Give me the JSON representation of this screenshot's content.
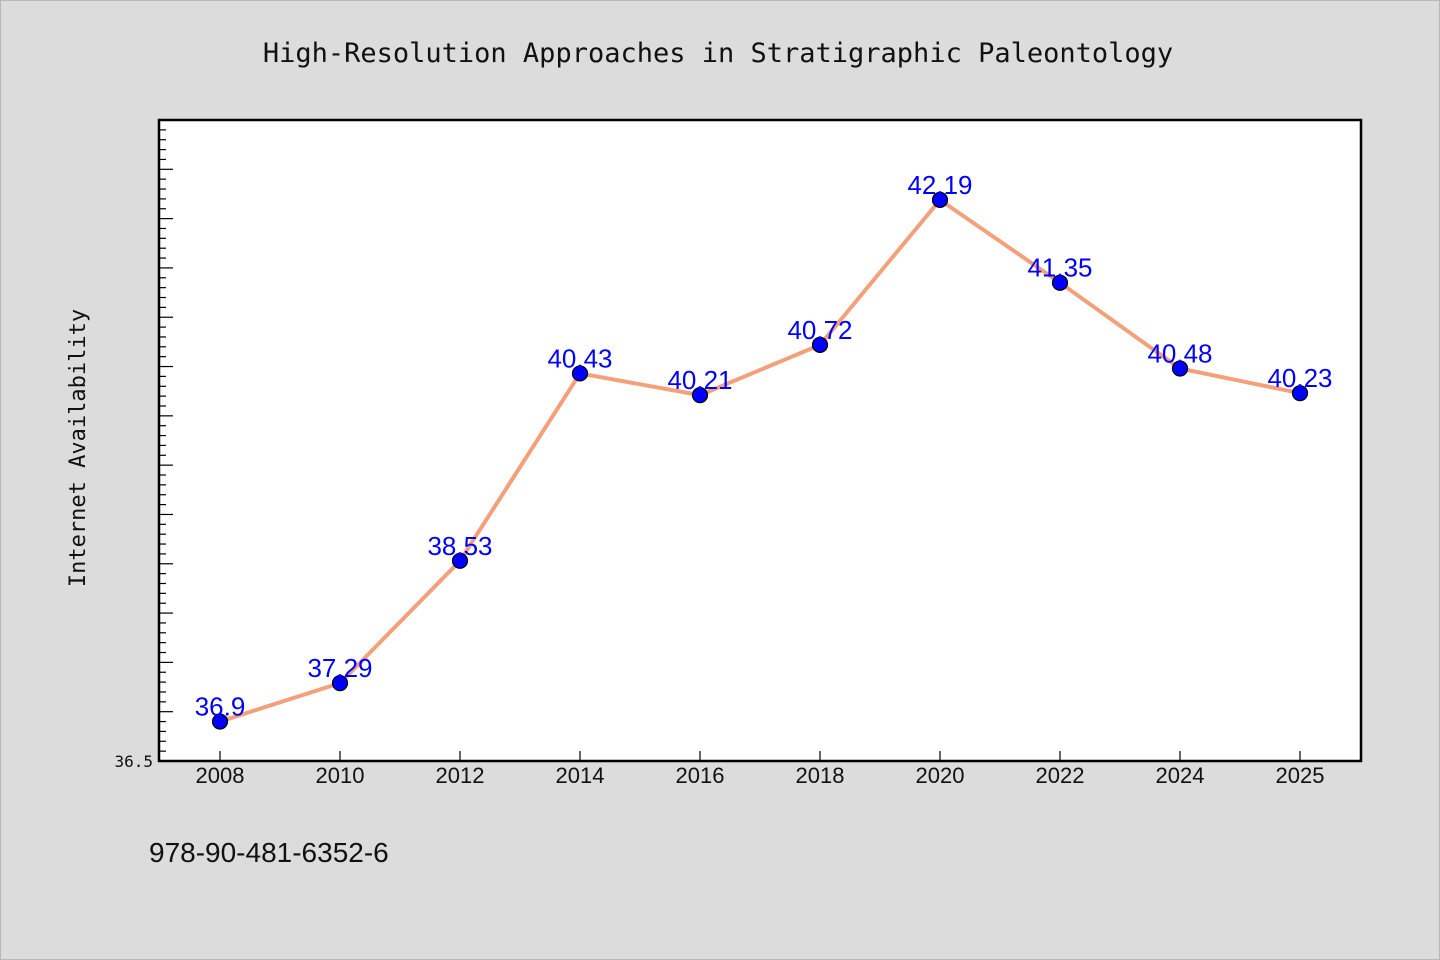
{
  "chart_data": {
    "type": "line",
    "title": "High-Resolution Approaches in Stratigraphic Paleontology",
    "xlabel": "",
    "ylabel": "Internet Availability",
    "categories": [
      "2008",
      "2010",
      "2012",
      "2014",
      "2016",
      "2018",
      "2020",
      "2022",
      "2024",
      "2025"
    ],
    "series": [
      {
        "values": [
          36.9,
          37.29,
          38.53,
          40.43,
          40.21,
          40.72,
          42.19,
          41.35,
          40.48,
          40.23
        ],
        "labels": [
          "36.9",
          "37.29",
          "38.53",
          "40.43",
          "40.21",
          "40.72",
          "42.19",
          "41.35",
          "40.48",
          "40.23"
        ]
      }
    ],
    "ylim": [
      36.5,
      43.0
    ],
    "yticks_labeled": [
      "36.5"
    ],
    "grid": false,
    "legend": "none",
    "colors": {
      "line": "#f4a07a",
      "marker": "#0000ff",
      "marker_edge": "#000000",
      "data_label": "#0000ff",
      "plot_bg": "#ffffff",
      "page_bg": "#dcdcdc"
    }
  },
  "footer": {
    "isbn": "978-90-481-6352-6"
  }
}
